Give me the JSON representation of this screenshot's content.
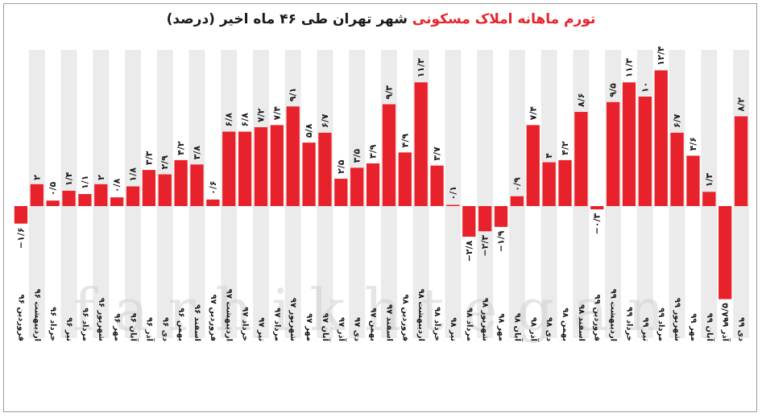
{
  "chart_data": {
    "type": "bar",
    "title_accent": "تورم ماهانه املاک مسکونی",
    "title_rest": " شهر تهران طی ۴۶ ماه اخیر (درصد)",
    "watermark": "farhikhtegan",
    "colors": {
      "bar": "#e8222a",
      "stripe": "#ebebeb",
      "text": "#1a1a1a"
    },
    "ylim": [
      -9,
      13
    ],
    "categories": [
      "فروردین ۹۶",
      "اردیبهشت ۹۶",
      "خرداد ۹۶",
      "تیر ۹۶",
      "مرداد ۹۶",
      "شهریور ۹۶",
      "مهر ۹۶",
      "آبان ۹۶",
      "آذر ۹۶",
      "دی ۹۶",
      "بهمن ۹۶",
      "اسفند ۹۶",
      "فروردین ۹۷",
      "اردیبهشت ۹۷",
      "خرداد ۹۷",
      "تیر ۹۷",
      "مرداد ۹۷",
      "شهریور ۹۷",
      "مهر ۹۷",
      "آبان ۹۷",
      "آذر ۹۷",
      "دی ۹۷",
      "بهمن ۹۷",
      "اسفند ۹۷",
      "فروردین ۹۸",
      "اردیبهشت ۹۸",
      "خرداد ۹۸",
      "تیر ۹۸",
      "مرداد ۹۸",
      "شهریور ۹۸",
      "مهر ۹۸",
      "آبان ۹۸",
      "آذر ۹۸",
      "دی ۹۸",
      "بهمن ۹۸",
      "اسفند ۹۸",
      "فروردین ۹۹",
      "اردیبهشت ۹۹",
      "خرداد ۹۹",
      "تیر ۹۹",
      "مرداد ۹۹",
      "شهریور ۹۹",
      "مهر ۹۹",
      "آبان ۹۹",
      "آذر ۹۹",
      "دی ۹۹"
    ],
    "values": [
      -1.6,
      2,
      0.5,
      1.4,
      1.1,
      2,
      0.8,
      1.8,
      3.3,
      2.9,
      4.2,
      3.8,
      0.6,
      6.8,
      6.8,
      7.2,
      7.4,
      9.1,
      5.8,
      6.7,
      2.5,
      3.5,
      3.9,
      9.3,
      4.9,
      11.3,
      3.7,
      0.1,
      -2.8,
      -2.3,
      -1.9,
      0.9,
      7.4,
      4,
      4.2,
      8.6,
      -0.3,
      9.5,
      11.3,
      10,
      12.4,
      6.7,
      4.6,
      1.3,
      -8.5,
      8.2
    ],
    "value_labels": [
      "−۱/۶",
      "۲",
      "۰/۵",
      "۱/۴",
      "۱/۱",
      "۲",
      "۰/۸",
      "۱/۸",
      "۳/۳",
      "۲/۹",
      "۴/۲",
      "۳/۸",
      "۰/۶",
      "۶/۸",
      "۶/۸",
      "۷/۲",
      "۷/۴",
      "۹/۱",
      "۵/۸",
      "۶/۷",
      "۲/۵",
      "۳/۵",
      "۳/۹",
      "۹/۳",
      "۴/۹",
      "۱۱/۳",
      "۳/۷",
      "۰/۱",
      "−۲/۸",
      "−۲/۳",
      "−۱/۹",
      "۰/۹",
      "۷/۴",
      "۴",
      "۴/۲",
      "۸/۶",
      "−۰/۳",
      "۹/۵",
      "۱۱/۳",
      "۱۰",
      "۱۲/۴",
      "۶/۷",
      "۴/۶",
      "۱/۳",
      "−۸/۵",
      "۸/۲"
    ]
  }
}
